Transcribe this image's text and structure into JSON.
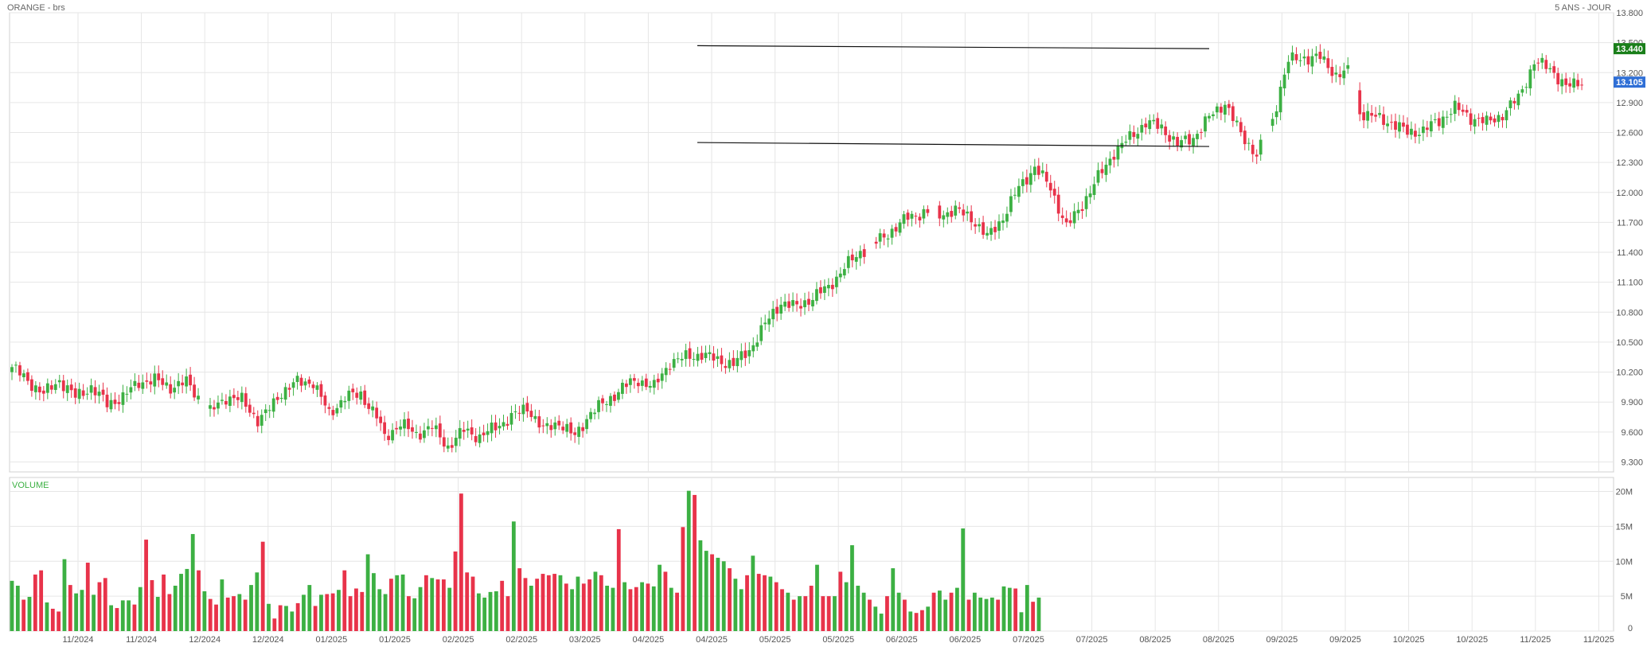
{
  "header": {
    "title": "ORANGE - brs",
    "range": "5 ANS - JOUR"
  },
  "colors": {
    "up": "#3cb043",
    "down": "#e8334a",
    "grid": "#e6e6e6",
    "frame": "#cccccc",
    "badge_resistance": "#1a7f1a",
    "badge_last": "#2f6fd6",
    "trendline": "#111111"
  },
  "chart_data": [
    {
      "type": "candlestick",
      "title": "ORANGE - brs",
      "ylim": [
        9.2,
        13.8
      ],
      "yticks": [
        9.3,
        9.6,
        9.9,
        10.2,
        10.5,
        10.8,
        11.1,
        11.4,
        11.7,
        12.0,
        12.3,
        12.6,
        12.9,
        13.2,
        13.5,
        13.8
      ],
      "ytick_labels": [
        "9.300",
        "9.600",
        "9.900",
        "10.200",
        "10.500",
        "10.800",
        "11.100",
        "11.400",
        "11.700",
        "12.000",
        "12.300",
        "12.600",
        "12.900",
        "13.200",
        "13.500",
        "13.800"
      ],
      "x_labels": [
        "11/2024",
        "11/2024",
        "12/2024",
        "12/2024",
        "01/2025",
        "01/2025",
        "02/2025",
        "02/2025",
        "03/2025",
        "04/2025",
        "04/2025",
        "05/2025",
        "05/2025",
        "06/2025",
        "06/2025",
        "07/2025",
        "07/2025",
        "08/2025",
        "08/2025",
        "09/2025",
        "09/2025",
        "10/2025",
        "10/2025",
        "11/2025",
        "11/2025"
      ],
      "key_points": [
        [
          0,
          10.25
        ],
        [
          8,
          9.98
        ],
        [
          12,
          10.12
        ],
        [
          16,
          9.95
        ],
        [
          20,
          10.05
        ],
        [
          24,
          9.88
        ],
        [
          28,
          9.95
        ],
        [
          32,
          10.1
        ],
        [
          36,
          10.12
        ],
        [
          40,
          10.05
        ],
        [
          44,
          10.1
        ],
        [
          50,
          9.8
        ],
        [
          54,
          9.95
        ],
        [
          58,
          9.92
        ],
        [
          62,
          9.72
        ],
        [
          64,
          9.78
        ],
        [
          68,
          10.0
        ],
        [
          72,
          10.1
        ],
        [
          76,
          10.1
        ],
        [
          80,
          9.78
        ],
        [
          84,
          9.95
        ],
        [
          88,
          9.98
        ],
        [
          92,
          9.75
        ],
        [
          94,
          9.55
        ],
        [
          98,
          9.68
        ],
        [
          102,
          9.58
        ],
        [
          106,
          9.65
        ],
        [
          110,
          9.45
        ],
        [
          114,
          9.62
        ],
        [
          118,
          9.55
        ],
        [
          122,
          9.65
        ],
        [
          126,
          9.75
        ],
        [
          130,
          9.85
        ],
        [
          134,
          9.62
        ],
        [
          138,
          9.7
        ],
        [
          142,
          9.55
        ],
        [
          146,
          9.8
        ],
        [
          150,
          9.9
        ],
        [
          154,
          10.05
        ],
        [
          158,
          10.12
        ],
        [
          162,
          10.05
        ],
        [
          166,
          10.3
        ],
        [
          170,
          10.35
        ],
        [
          174,
          10.38
        ],
        [
          178,
          10.32
        ],
        [
          182,
          10.28
        ],
        [
          186,
          10.42
        ],
        [
          190,
          10.68
        ],
        [
          194,
          10.9
        ],
        [
          198,
          10.85
        ],
        [
          202,
          10.95
        ],
        [
          206,
          11.05
        ],
        [
          210,
          11.25
        ],
        [
          214,
          11.4
        ],
        [
          218,
          11.5
        ],
        [
          222,
          11.62
        ],
        [
          226,
          11.75
        ],
        [
          230,
          11.8
        ],
        [
          234,
          11.78
        ],
        [
          238,
          11.82
        ],
        [
          242,
          11.75
        ],
        [
          246,
          11.55
        ],
        [
          250,
          11.75
        ],
        [
          254,
          12.05
        ],
        [
          258,
          12.25
        ],
        [
          262,
          12.05
        ],
        [
          266,
          11.65
        ],
        [
          270,
          11.88
        ],
        [
          274,
          12.15
        ],
        [
          278,
          12.4
        ],
        [
          282,
          12.55
        ],
        [
          286,
          12.7
        ],
        [
          290,
          12.65
        ],
        [
          294,
          12.48
        ],
        [
          298,
          12.55
        ],
        [
          302,
          12.75
        ],
        [
          306,
          12.9
        ],
        [
          310,
          12.58
        ],
        [
          314,
          12.38
        ],
        [
          318,
          12.72
        ],
        [
          320,
          13.05
        ],
        [
          322,
          13.32
        ],
        [
          326,
          13.35
        ],
        [
          330,
          13.35
        ],
        [
          334,
          13.18
        ],
        [
          338,
          13.22
        ],
        [
          340,
          12.8
        ],
        [
          344,
          12.75
        ],
        [
          348,
          12.7
        ],
        [
          352,
          12.6
        ],
        [
          356,
          12.62
        ],
        [
          360,
          12.72
        ],
        [
          364,
          12.85
        ],
        [
          368,
          12.75
        ],
        [
          372,
          12.7
        ],
        [
          376,
          12.78
        ],
        [
          380,
          12.95
        ],
        [
          384,
          13.3
        ],
        [
          388,
          13.25
        ],
        [
          392,
          13.05
        ],
        [
          396,
          13.12
        ]
      ],
      "gaps": [
        [
          48,
          49
        ],
        [
          216,
          217
        ],
        [
          232,
          233
        ],
        [
          316,
          317
        ],
        [
          338,
          339
        ]
      ],
      "last_index": 396,
      "resistance_line": {
        "from": [
          "04/2025",
          13.47
        ],
        "to": [
          "08/2025",
          13.44
        ],
        "label": "13.440"
      },
      "support_line": {
        "from": [
          "04/2025",
          12.5
        ],
        "to": [
          "08/2025",
          12.46
        ]
      },
      "last_price": "13.105"
    },
    {
      "type": "bar",
      "title": "VOLUME",
      "ylim": [
        0,
        22
      ],
      "yticks": [
        0,
        5,
        10,
        15,
        20
      ],
      "ytick_labels": [
        "0",
        "5M",
        "10M",
        "15M",
        "20M"
      ],
      "unit": "M",
      "volumes": [
        7.2,
        6.5,
        4.5,
        4.9,
        8.1,
        8.7,
        4.1,
        3.2,
        2.8,
        10.3,
        6.6,
        5.4,
        5.9,
        9.8,
        5.2,
        7.0,
        7.6,
        3.7,
        3.3,
        4.4,
        4.4,
        3.8,
        6.3,
        13.1,
        7.3,
        4.9,
        8.1,
        5.3,
        6.5,
        8.2,
        8.9,
        13.9,
        8.7,
        5.7,
        4.6,
        3.8,
        7.4,
        4.8,
        5.0,
        5.3,
        4.5,
        6.6,
        8.4,
        12.8,
        3.9,
        1.8,
        3.7,
        3.6,
        2.8,
        4.0,
        5.2,
        6.6,
        3.6,
        5.2,
        5.3,
        5.4,
        5.9,
        8.7,
        5.0,
        6.1,
        5.6,
        11.0,
        8.3,
        6.0,
        5.3,
        7.5,
        8.0,
        8.1,
        5.0,
        4.7,
        6.3,
        8.0,
        7.6,
        7.4,
        7.4,
        6.2,
        11.4,
        19.7,
        8.4,
        7.8,
        5.4,
        4.8,
        5.6,
        5.7,
        7.2,
        5.0,
        15.7,
        9.0,
        7.6,
        6.5,
        7.5,
        8.2,
        8.0,
        8.2,
        8.0,
        6.8,
        6.0,
        7.8,
        6.8,
        7.4,
        8.5,
        8.0,
        6.5,
        6.2,
        14.6,
        7.0,
        6.0,
        6.3,
        7.0,
        6.8,
        6.4,
        9.5,
        8.5,
        6.2,
        5.5,
        14.9,
        20.1,
        19.5,
        13.0,
        11.5,
        11.0,
        10.5,
        10.0,
        9.0,
        7.5,
        6.0,
        8.0,
        10.8,
        8.2,
        8.0,
        7.8,
        7.0,
        6.0,
        5.5,
        4.5,
        5.0,
        5.0,
        6.5,
        9.5,
        5.0,
        5.0,
        5.0,
        8.5,
        7.0,
        12.3,
        6.5,
        5.5,
        4.5,
        3.5,
        2.5,
        5.0,
        9.0,
        5.5,
        4.5,
        2.8,
        2.6,
        3.0,
        3.5,
        5.5,
        5.8,
        4.5,
        5.5,
        6.2,
        14.7,
        4.5,
        5.5,
        4.8,
        4.6,
        4.8,
        4.5,
        6.4,
        6.2,
        6.1,
        2.7,
        6.6,
        4.2,
        4.8
      ],
      "volume_colors": "by-candle"
    }
  ]
}
